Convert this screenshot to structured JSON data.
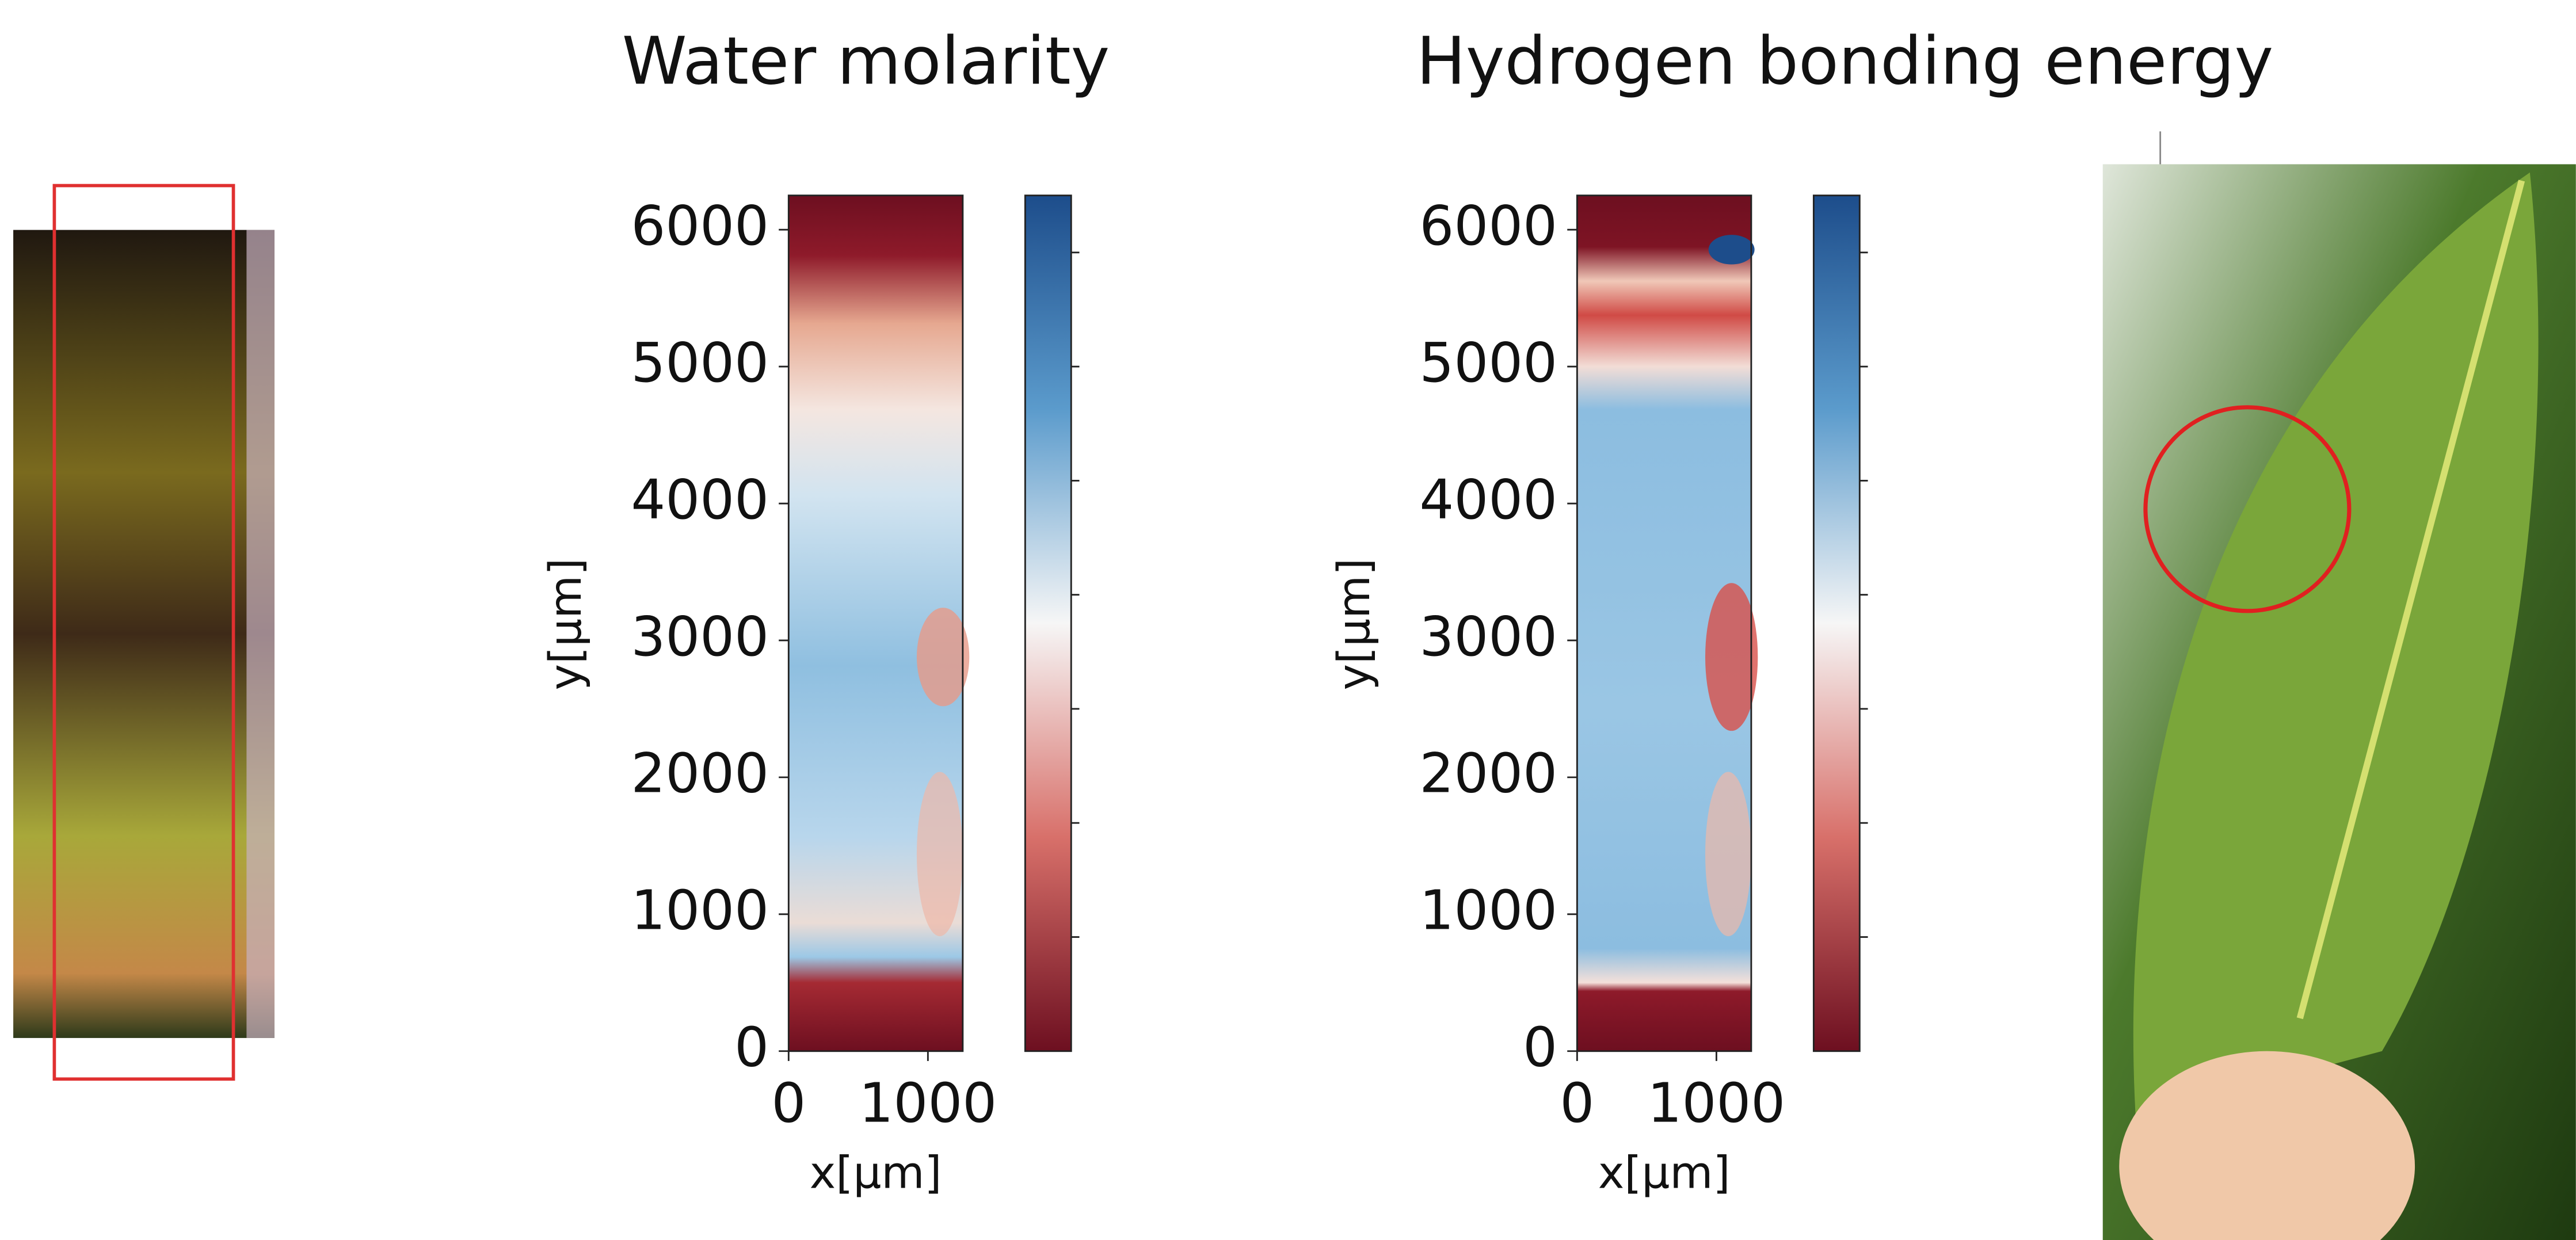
{
  "chart_data": [
    {
      "type": "heatmap",
      "title": "Water molarity",
      "xlabel": "x[μm]",
      "ylabel": "y[μm]",
      "xlim": [
        0,
        1250
      ],
      "ylim": [
        0,
        6250
      ],
      "xticks": [
        0,
        1000
      ],
      "yticks": [
        0,
        1000,
        2000,
        3000,
        4000,
        5000,
        6000
      ]
    },
    {
      "type": "heatmap",
      "title": "Hydrogen bonding energy",
      "xlabel": "x[μm]",
      "ylabel": "y[μm]",
      "xlim": [
        0,
        1250
      ],
      "ylim": [
        0,
        6250
      ],
      "xticks": [
        0,
        1000
      ],
      "yticks": [
        0,
        1000,
        2000,
        3000,
        4000,
        5000,
        6000
      ]
    }
  ]
}
